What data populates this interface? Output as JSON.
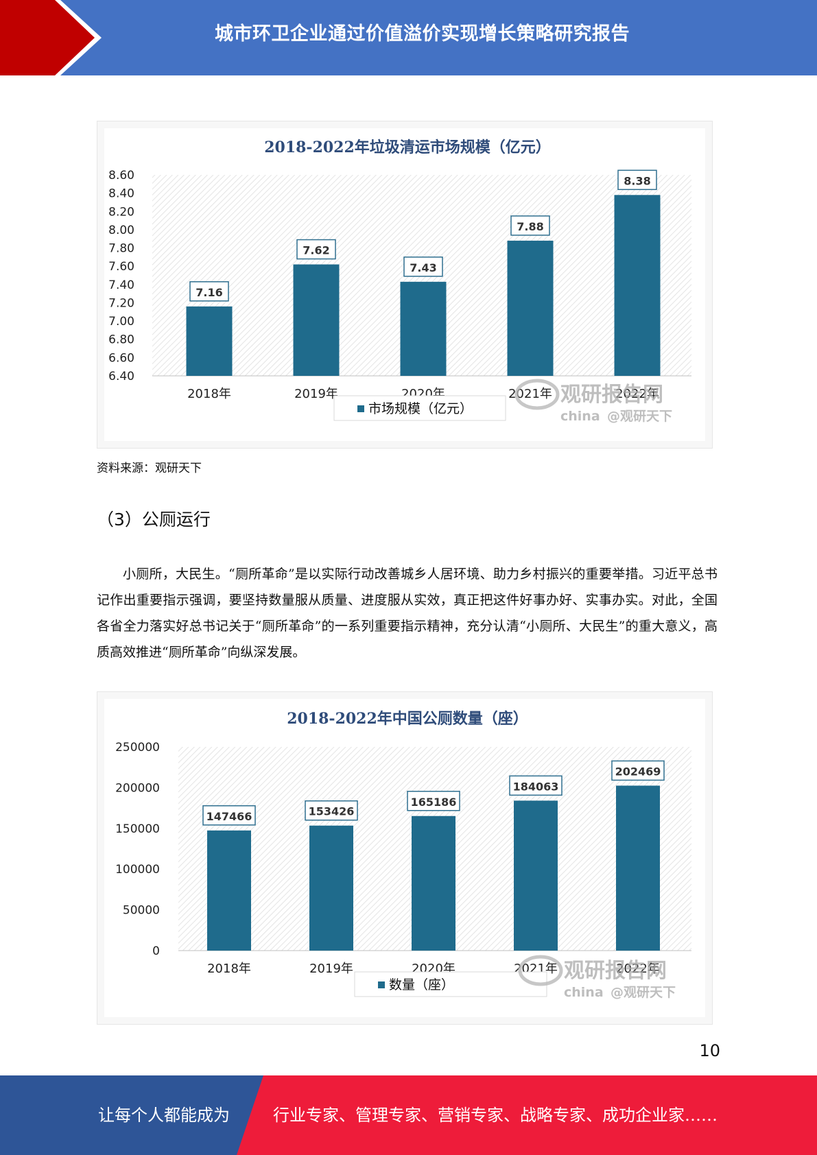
{
  "header": {
    "title": "城市环卫企业通过价值溢价实现增长策略研究报告"
  },
  "charts": [
    {
      "chart_data": {
        "type": "bar",
        "title": "2018-2022年垃圾清运市场规模（亿元）",
        "categories": [
          "2018年",
          "2019年",
          "2020年",
          "2021年",
          "2022年"
        ],
        "series": [
          {
            "name": "市场规模（亿元）",
            "values": [
              7.16,
              7.62,
              7.43,
              7.88,
              8.38
            ]
          }
        ],
        "data_labels": [
          "7.16",
          "7.62",
          "7.43",
          "7.88",
          "8.38"
        ],
        "y_ticks": [
          "6.40",
          "6.60",
          "6.80",
          "7.00",
          "7.20",
          "7.40",
          "7.60",
          "7.80",
          "8.00",
          "8.20",
          "8.40",
          "8.60"
        ],
        "ylim": [
          6.4,
          8.6
        ],
        "legend": "bottom",
        "bar_color": "#1f6b8c"
      },
      "watermark": {
        "brand": "观研报告网",
        "sub": "china",
        "handle": "@观研天下"
      }
    },
    {
      "chart_data": {
        "type": "bar",
        "title": "2018-2022年中国公厕数量（座）",
        "categories": [
          "2018年",
          "2019年",
          "2020年",
          "2021年",
          "2022年"
        ],
        "series": [
          {
            "name": "数量（座）",
            "values": [
              147466,
              153426,
              165186,
              184063,
              202469
            ]
          }
        ],
        "data_labels": [
          "147466",
          "153426",
          "165186",
          "184063",
          "202469"
        ],
        "y_ticks": [
          "0",
          "50000",
          "100000",
          "150000",
          "200000",
          "250000"
        ],
        "ylim": [
          0,
          250000
        ],
        "legend": "bottom",
        "bar_color": "#1f6b8c"
      },
      "watermark": {
        "brand": "观研报告网",
        "sub": "china",
        "handle": "@观研天下"
      }
    }
  ],
  "source": "资料来源：观研天下",
  "section": {
    "title": "（3）公厕运行"
  },
  "paragraph": "小厕所，大民生。“厕所革命”是以实际行动改善城乡人居环境、助力乡村振兴的重要举措。习近平总书记作出重要指示强调，要坚持数量服从质量、进度服从实效，真正把这件好事办好、实事办实。对此，全国各省全力落实好总书记关于“厕所革命”的一系列重要指示精神，充分认清“小厕所、大民生”的重大意义，高质高效推进“厕所革命”向纵深发展。",
  "page_number": "10",
  "footer": {
    "left": "让每个人都能成为",
    "right": "行业专家、管理专家、营销专家、战略专家、成功企业家……"
  },
  "colors": {
    "header_blue": "#4472c4",
    "accent_red": "#c00000",
    "footer_blue": "#2e5597",
    "footer_red": "#ee1c3a"
  }
}
